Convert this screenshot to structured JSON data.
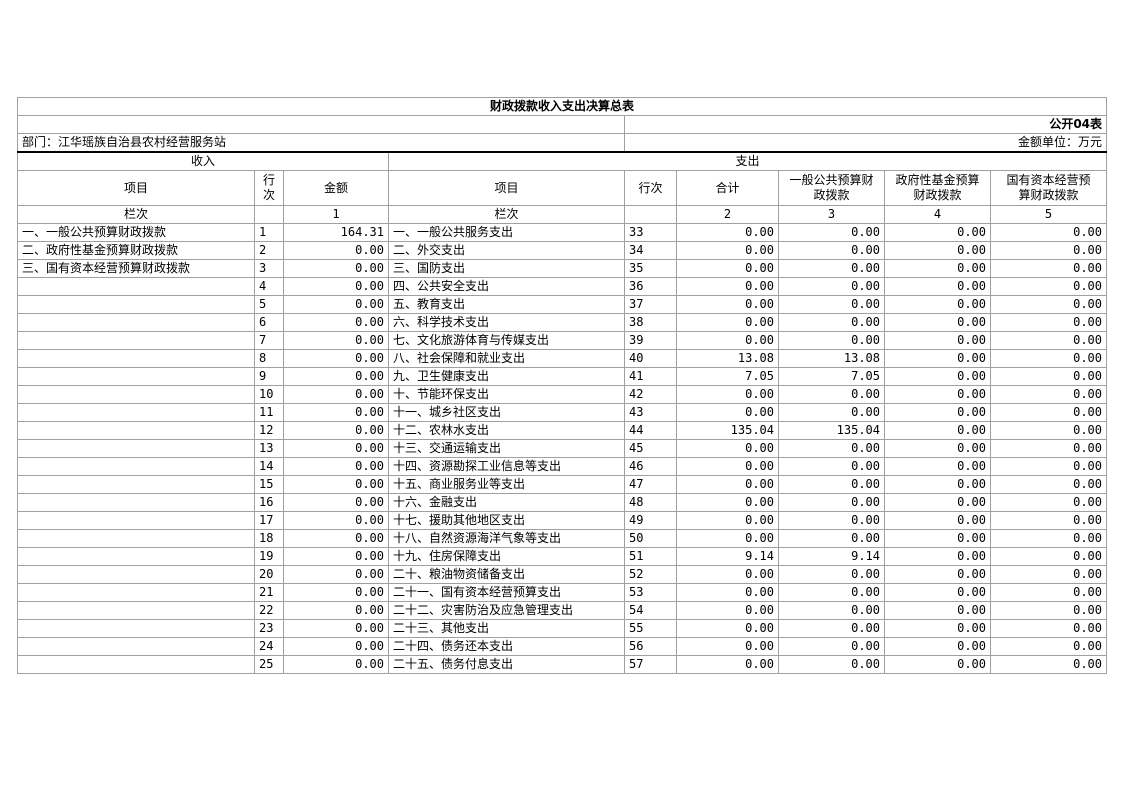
{
  "title": "财政拨款收入支出决算总表",
  "form_code": "公开04表",
  "department": "部门：江华瑶族自治县农村经营服务站",
  "unit": "金额单位：万元",
  "income_header": "收入",
  "expense_header": "支出",
  "cols": {
    "item": "项目",
    "row_no": "行次",
    "amount": "金额",
    "exp_item": "项目",
    "exp_row_no": "行次",
    "total": "合计",
    "general": "一般公共预算财政拨款",
    "fund": "政府性基金预算财政拨款",
    "state": "国有资本经营预算财政拨款"
  },
  "col_index": {
    "label": "栏次",
    "c1": "1",
    "exp_label": "栏次",
    "c2": "2",
    "c3": "3",
    "c4": "4",
    "c5": "5"
  },
  "rows": [
    [
      "一、一般公共预算财政拨款",
      "1",
      "164.31",
      "一、一般公共服务支出",
      "33",
      "0.00",
      "0.00",
      "0.00",
      "0.00"
    ],
    [
      "二、政府性基金预算财政拨款",
      "2",
      "0.00",
      "二、外交支出",
      "34",
      "0.00",
      "0.00",
      "0.00",
      "0.00"
    ],
    [
      "三、国有资本经营预算财政拨款",
      "3",
      "0.00",
      "三、国防支出",
      "35",
      "0.00",
      "0.00",
      "0.00",
      "0.00"
    ],
    [
      "",
      "4",
      "0.00",
      "四、公共安全支出",
      "36",
      "0.00",
      "0.00",
      "0.00",
      "0.00"
    ],
    [
      "",
      "5",
      "0.00",
      "五、教育支出",
      "37",
      "0.00",
      "0.00",
      "0.00",
      "0.00"
    ],
    [
      "",
      "6",
      "0.00",
      "六、科学技术支出",
      "38",
      "0.00",
      "0.00",
      "0.00",
      "0.00"
    ],
    [
      "",
      "7",
      "0.00",
      "七、文化旅游体育与传媒支出",
      "39",
      "0.00",
      "0.00",
      "0.00",
      "0.00"
    ],
    [
      "",
      "8",
      "0.00",
      "八、社会保障和就业支出",
      "40",
      "13.08",
      "13.08",
      "0.00",
      "0.00"
    ],
    [
      "",
      "9",
      "0.00",
      "九、卫生健康支出",
      "41",
      "7.05",
      "7.05",
      "0.00",
      "0.00"
    ],
    [
      "",
      "10",
      "0.00",
      "十、节能环保支出",
      "42",
      "0.00",
      "0.00",
      "0.00",
      "0.00"
    ],
    [
      "",
      "11",
      "0.00",
      "十一、城乡社区支出",
      "43",
      "0.00",
      "0.00",
      "0.00",
      "0.00"
    ],
    [
      "",
      "12",
      "0.00",
      "十二、农林水支出",
      "44",
      "135.04",
      "135.04",
      "0.00",
      "0.00"
    ],
    [
      "",
      "13",
      "0.00",
      "十三、交通运输支出",
      "45",
      "0.00",
      "0.00",
      "0.00",
      "0.00"
    ],
    [
      "",
      "14",
      "0.00",
      "十四、资源勘探工业信息等支出",
      "46",
      "0.00",
      "0.00",
      "0.00",
      "0.00"
    ],
    [
      "",
      "15",
      "0.00",
      "十五、商业服务业等支出",
      "47",
      "0.00",
      "0.00",
      "0.00",
      "0.00"
    ],
    [
      "",
      "16",
      "0.00",
      "十六、金融支出",
      "48",
      "0.00",
      "0.00",
      "0.00",
      "0.00"
    ],
    [
      "",
      "17",
      "0.00",
      "十七、援助其他地区支出",
      "49",
      "0.00",
      "0.00",
      "0.00",
      "0.00"
    ],
    [
      "",
      "18",
      "0.00",
      "十八、自然资源海洋气象等支出",
      "50",
      "0.00",
      "0.00",
      "0.00",
      "0.00"
    ],
    [
      "",
      "19",
      "0.00",
      "十九、住房保障支出",
      "51",
      "9.14",
      "9.14",
      "0.00",
      "0.00"
    ],
    [
      "",
      "20",
      "0.00",
      "二十、粮油物资储备支出",
      "52",
      "0.00",
      "0.00",
      "0.00",
      "0.00"
    ],
    [
      "",
      "21",
      "0.00",
      "二十一、国有资本经营预算支出",
      "53",
      "0.00",
      "0.00",
      "0.00",
      "0.00"
    ],
    [
      "",
      "22",
      "0.00",
      "二十二、灾害防治及应急管理支出",
      "54",
      "0.00",
      "0.00",
      "0.00",
      "0.00"
    ],
    [
      "",
      "23",
      "0.00",
      "二十三、其他支出",
      "55",
      "0.00",
      "0.00",
      "0.00",
      "0.00"
    ],
    [
      "",
      "24",
      "0.00",
      "二十四、债务还本支出",
      "56",
      "0.00",
      "0.00",
      "0.00",
      "0.00"
    ],
    [
      "",
      "25",
      "0.00",
      "二十五、债务付息支出",
      "57",
      "0.00",
      "0.00",
      "0.00",
      "0.00"
    ]
  ]
}
